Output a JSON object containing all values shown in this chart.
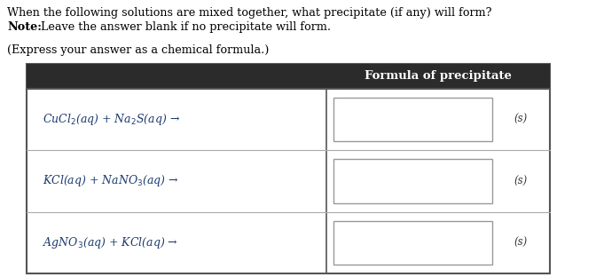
{
  "title_line1": "When the following solutions are mixed together, what precipitate (if any) will form?",
  "title_line2_bold": "Note:",
  "title_line2_rest": " Leave the answer blank if no precipitate will form.",
  "subtitle": "(Express your answer as a chemical formula.)",
  "header": "Formula of precipitate",
  "row_labels": [
    "CuCl$_2$(aq) + Na$_2$S(aq) →",
    "KCl(aq) + NaNO$_3$(aq) →",
    "AgNO$_3$(aq) + KCl(aq) →"
  ],
  "s_label": "(s)",
  "header_bg": "#2b2b2b",
  "header_text_color": "#ffffff",
  "table_border_color": "#555555",
  "row_sep_color": "#aaaaaa",
  "input_box_border": "#999999",
  "row_text_color": "#1c3a6e",
  "s_text_color": "#333333",
  "background_color": "#ffffff",
  "fig_width": 6.72,
  "fig_height": 3.12,
  "dpi": 100,
  "text_fontsize": 9.2,
  "header_fontsize": 9.5,
  "row_fontsize": 9.0,
  "s_fontsize": 8.5
}
